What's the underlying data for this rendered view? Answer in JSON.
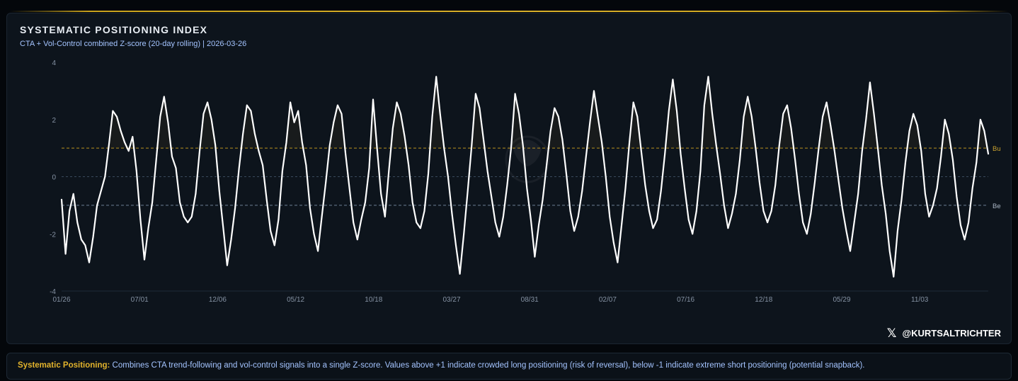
{
  "header": {
    "title": "SYSTEMATIC POSITIONING INDEX",
    "subtitle": "CTA + Vol-Control combined Z-score (20-day rolling) | 2026-03-26"
  },
  "branding": {
    "handle": "@KURTSALTRICHTER",
    "x_icon": "x-logo-icon",
    "x_glyph": "𝕏"
  },
  "footer": {
    "label": "Systematic Positioning:",
    "text": " Combines CTA trend-following and vol-control signals into a single Z-score. Values above +1 indicate crowded long positioning (risk of reversal), below -1 indicate extreme short positioning (potential snapback)."
  },
  "colors": {
    "line": "#ffffff",
    "bull_threshold": "#b8911f",
    "bear_threshold": "#6b7e94",
    "zero_line": "#3a4a5c",
    "tick_label": "#8592a3"
  },
  "chart_data": {
    "type": "line",
    "title": "SYSTEMATIC POSITIONING INDEX",
    "subtitle": "CTA + Vol-Control combined Z-score (20-day rolling) | 2026-03-26",
    "xlabel": "",
    "ylabel": "",
    "ylim": [
      -4,
      4
    ],
    "yticks": [
      4,
      2,
      0,
      -2,
      -4
    ],
    "xtick_labels": [
      "01/26",
      "07/01",
      "12/06",
      "05/12",
      "10/18",
      "03/27",
      "08/31",
      "02/07",
      "07/16",
      "12/18",
      "05/29",
      "11/03"
    ],
    "threshold_lines": [
      {
        "label": "Bu",
        "value": 1,
        "style": "dashed"
      },
      {
        "label": "Be",
        "value": -1,
        "style": "dashed"
      }
    ],
    "grid": false,
    "legend": "none",
    "series": [
      {
        "values": [
          -0.8,
          -2.7,
          -1.2,
          -0.6,
          -1.6,
          -2.2,
          -2.4,
          -3.0,
          -2.1,
          -1.0,
          -0.5,
          0.0,
          1.1,
          2.3,
          2.1,
          1.6,
          1.2,
          0.9,
          1.4,
          0.2,
          -1.5,
          -2.9,
          -1.8,
          -0.9,
          0.6,
          2.1,
          2.8,
          1.9,
          0.7,
          0.3,
          -0.9,
          -1.4,
          -1.6,
          -1.4,
          -0.6,
          0.9,
          2.2,
          2.6,
          2.0,
          1.1,
          -0.5,
          -1.8,
          -3.1,
          -2.2,
          -1.1,
          0.3,
          1.5,
          2.5,
          2.3,
          1.5,
          0.9,
          0.4,
          -0.8,
          -1.9,
          -2.4,
          -1.5,
          0.2,
          1.2,
          2.6,
          1.9,
          2.3,
          1.2,
          0.4,
          -1.1,
          -2.0,
          -2.6,
          -1.4,
          -0.2,
          1.1,
          1.9,
          2.5,
          2.2,
          0.8,
          -0.4,
          -1.6,
          -2.2,
          -1.5,
          -0.9,
          0.3,
          2.7,
          1.0,
          -0.6,
          -1.4,
          0.2,
          1.7,
          2.6,
          2.2,
          1.4,
          0.4,
          -0.9,
          -1.6,
          -1.8,
          -1.2,
          0.1,
          2.1,
          3.5,
          2.2,
          1.0,
          0.0,
          -1.3,
          -2.4,
          -3.4,
          -2.0,
          -0.5,
          1.1,
          2.9,
          2.4,
          1.3,
          0.2,
          -0.7,
          -1.6,
          -2.1,
          -1.4,
          -0.3,
          1.0,
          2.9,
          2.2,
          1.1,
          -0.4,
          -1.5,
          -2.8,
          -1.7,
          -0.8,
          0.4,
          1.6,
          2.4,
          2.1,
          1.3,
          0.1,
          -1.2,
          -1.9,
          -1.4,
          -0.5,
          0.7,
          1.9,
          3.0,
          2.1,
          1.2,
          0.0,
          -1.4,
          -2.3,
          -3.0,
          -1.7,
          -0.4,
          1.2,
          2.6,
          2.1,
          0.9,
          -0.3,
          -1.2,
          -1.8,
          -1.5,
          -0.5,
          0.8,
          2.3,
          3.4,
          2.3,
          0.8,
          -0.4,
          -1.5,
          -2.0,
          -1.2,
          0.2,
          2.5,
          3.5,
          2.2,
          1.1,
          0.1,
          -1.0,
          -1.8,
          -1.3,
          -0.6,
          0.6,
          2.1,
          2.8,
          2.1,
          1.0,
          -0.2,
          -1.2,
          -1.6,
          -1.2,
          -0.3,
          1.1,
          2.2,
          2.5,
          1.7,
          0.6,
          -0.6,
          -1.6,
          -2.0,
          -1.3,
          -0.2,
          1.0,
          2.1,
          2.6,
          1.8,
          0.9,
          -0.1,
          -1.1,
          -1.9,
          -2.6,
          -1.6,
          -0.6,
          0.9,
          2.0,
          3.3,
          2.2,
          1.0,
          -0.3,
          -1.3,
          -2.6,
          -3.5,
          -1.9,
          -0.8,
          0.5,
          1.6,
          2.2,
          1.8,
          0.9,
          -0.6,
          -1.4,
          -1.0,
          -0.4,
          0.7,
          2.0,
          1.5,
          0.6,
          -0.7,
          -1.7,
          -2.2,
          -1.6,
          -0.4,
          0.5,
          2.0,
          1.6,
          0.8
        ]
      }
    ]
  }
}
